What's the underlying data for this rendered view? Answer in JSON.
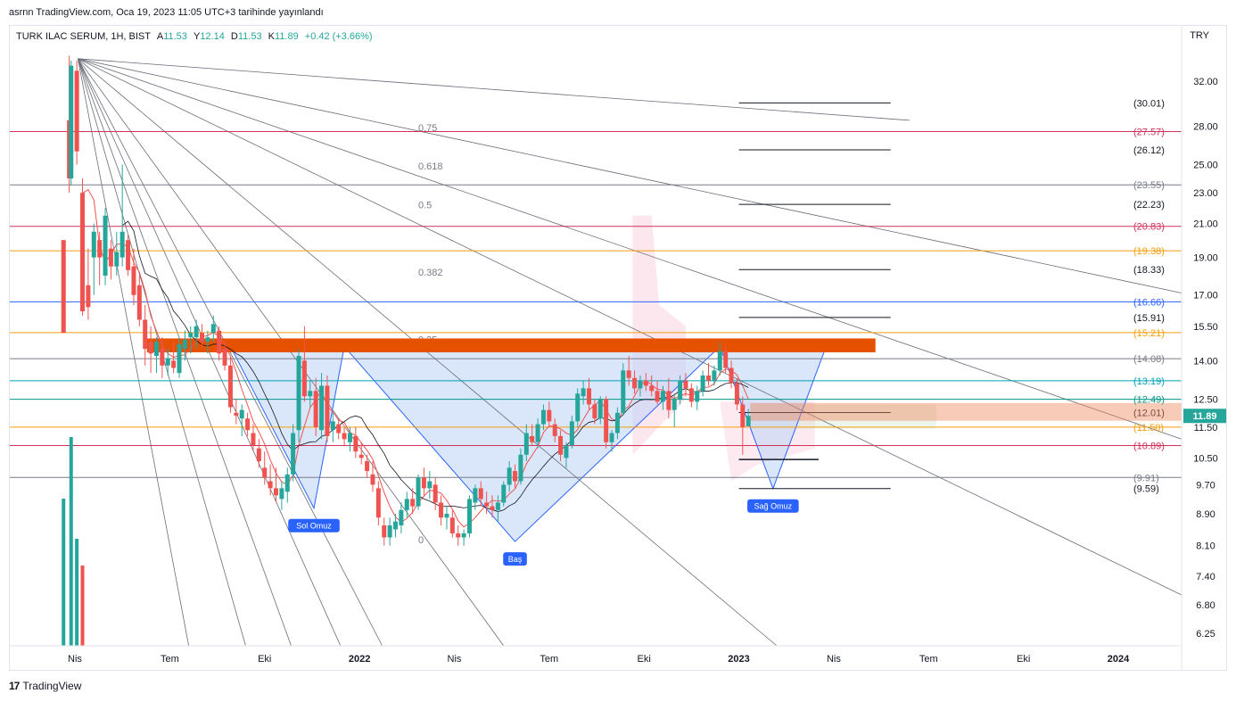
{
  "header": {
    "publish_line": "asrnn TradingView.com, Oca 19, 2023 11:05 UTC+3 tarihinde yayınlandı"
  },
  "legend": {
    "symbol": "TURK ILAC SERUM, 1H, BIST",
    "o_label": "A",
    "o_value": "11.53",
    "h_label": "Y",
    "h_value": "12.14",
    "l_label": "D",
    "l_value": "11.53",
    "c_label": "K",
    "c_value": "11.89",
    "change": "+0.42 (+3.66%)"
  },
  "currency": "TRY",
  "footer": {
    "brand": "TradingView",
    "logo_glyph": "17"
  },
  "colors": {
    "up": "#26a69a",
    "down": "#ef5350",
    "orange_band": "#e65100",
    "pattern_fill": "#bbd3f7",
    "pattern_stroke": "#2962ff",
    "label_bg": "#2962ff",
    "price_tag": "#26a69a"
  },
  "chart_data": {
    "type": "candlestick",
    "scale": "log",
    "ylim": [
      6.0,
      36.0
    ],
    "y_ticks": [
      6.25,
      6.8,
      7.4,
      8.1,
      8.9,
      9.7,
      10.5,
      11.5,
      12.5,
      14.0,
      15.5,
      17.0,
      19.0,
      21.0,
      23.0,
      25.0,
      28.0,
      32.0
    ],
    "y_tick_labels": [
      "6.25",
      "6.80",
      "7.40",
      "8.10",
      "8.90",
      "9.70",
      "10.50",
      "11.50",
      "12.50",
      "14.00",
      "15.50",
      "17.00",
      "19.00",
      "21.00",
      "23.00",
      "25.00",
      "28.00",
      "32.00"
    ],
    "x_ticks": [
      {
        "label": "Nis",
        "t": 2021.25
      },
      {
        "label": "Tem",
        "t": 2021.5
      },
      {
        "label": "Eki",
        "t": 2021.75
      },
      {
        "label": "2022",
        "t": 2022.0,
        "bold": true
      },
      {
        "label": "Nis",
        "t": 2022.25
      },
      {
        "label": "Tem",
        "t": 2022.5
      },
      {
        "label": "Eki",
        "t": 2022.75
      },
      {
        "label": "2023",
        "t": 2023.0,
        "bold": true
      },
      {
        "label": "Nis",
        "t": 2023.25
      },
      {
        "label": "Tem",
        "t": 2023.5
      },
      {
        "label": "Eki",
        "t": 2023.75
      },
      {
        "label": "2024",
        "t": 2024.0,
        "bold": true
      }
    ],
    "horizontal_levels": [
      {
        "value": 27.57,
        "label": "(27.57)",
        "color": "#d0325a",
        "full": true
      },
      {
        "value": 23.55,
        "label": "(23.55)",
        "color": "#787b86",
        "full": true
      },
      {
        "value": 20.83,
        "label": "(20.83)",
        "color": "#d0325a",
        "full": true
      },
      {
        "value": 19.38,
        "label": "(19.38)",
        "color": "#f59d0b",
        "full": true
      },
      {
        "value": 16.66,
        "label": "(16.66)",
        "color": "#2962ff",
        "full": true
      },
      {
        "value": 15.21,
        "label": "(15.21)",
        "color": "#f59d0b",
        "full": true
      },
      {
        "value": 14.08,
        "label": "(14.08)",
        "color": "#787b86",
        "full": true
      },
      {
        "value": 13.19,
        "label": "(13.19)",
        "color": "#00a3b4",
        "full": true
      },
      {
        "value": 12.49,
        "label": "(12.49)",
        "color": "#009688",
        "full": true
      },
      {
        "value": 11.5,
        "label": "(11.50)",
        "color": "#f59d0b",
        "full": true
      },
      {
        "value": 10.89,
        "label": "(10.89)",
        "color": "#d0325a",
        "full": true
      },
      {
        "value": 9.91,
        "label": "(9.91)",
        "color": "#787b86",
        "full": true
      },
      {
        "value": 30.01,
        "label": "(30.01)",
        "color": "#131722",
        "full": false
      },
      {
        "value": 26.12,
        "label": "(26.12)",
        "color": "#131722",
        "full": false
      },
      {
        "value": 22.23,
        "label": "(22.23)",
        "color": "#131722",
        "full": false
      },
      {
        "value": 18.33,
        "label": "(18.33)",
        "color": "#131722",
        "full": false
      },
      {
        "value": 15.91,
        "label": "(15.91)",
        "color": "#131722",
        "full": false
      },
      {
        "value": 12.01,
        "label": "(12.01)",
        "color": "#131722",
        "full": false
      },
      {
        "value": 9.59,
        "label": "(9.59)",
        "color": "#131722",
        "full": false
      }
    ],
    "fib_labels": [
      {
        "label": "0.75",
        "value": 27.9
      },
      {
        "label": "0.618",
        "value": 24.9
      },
      {
        "label": "0.5",
        "value": 22.2
      },
      {
        "label": "0.382",
        "value": 18.2
      },
      {
        "label": "0.25",
        "value": 14.9
      },
      {
        "label": "0",
        "value": 8.25
      }
    ],
    "pattern": {
      "labels": [
        "Sol Omuz",
        "Baş",
        "Sağ Omuz"
      ],
      "neckline": 14.6,
      "points": [
        {
          "t": 2021.66,
          "v": 14.6
        },
        {
          "t": 2021.88,
          "v": 9.05
        },
        {
          "t": 2021.96,
          "v": 14.6
        },
        {
          "t": 2022.41,
          "v": 8.2
        },
        {
          "t": 2022.95,
          "v": 14.6
        },
        {
          "t": 2023.09,
          "v": 9.59
        },
        {
          "t": 2023.23,
          "v": 14.6
        }
      ]
    },
    "last_price": {
      "value": 11.89,
      "label": "11.89"
    },
    "candles": [
      {
        "t": 2021.22,
        "o": 20.0,
        "h": 20.0,
        "l": 15.2,
        "c": 15.2
      },
      {
        "t": 2021.235,
        "o": 28.5,
        "h": 34.5,
        "l": 23.0,
        "c": 24.0
      },
      {
        "t": 2021.24,
        "o": 24.0,
        "h": 34.0,
        "l": 23.5,
        "c": 33.5
      },
      {
        "t": 2021.255,
        "o": 33.0,
        "h": 34.0,
        "l": 25.0,
        "c": 26.0
      },
      {
        "t": 2021.27,
        "o": 23.0,
        "h": 24.0,
        "l": 16.0,
        "c": 16.2
      },
      {
        "t": 2021.285,
        "o": 17.5,
        "h": 19.5,
        "l": 15.8,
        "c": 16.4
      },
      {
        "t": 2021.3,
        "o": 19.0,
        "h": 21.0,
        "l": 17.0,
        "c": 20.5
      },
      {
        "t": 2021.315,
        "o": 20.0,
        "h": 20.5,
        "l": 17.5,
        "c": 19.0
      },
      {
        "t": 2021.33,
        "o": 18.0,
        "h": 22.0,
        "l": 17.5,
        "c": 21.5
      },
      {
        "t": 2021.345,
        "o": 19.5,
        "h": 20.0,
        "l": 17.8,
        "c": 18.5
      },
      {
        "t": 2021.36,
        "o": 18.5,
        "h": 20.5,
        "l": 18.0,
        "c": 19.3
      },
      {
        "t": 2021.375,
        "o": 19.0,
        "h": 25.0,
        "l": 18.5,
        "c": 20.5
      },
      {
        "t": 2021.39,
        "o": 20.0,
        "h": 20.3,
        "l": 18.0,
        "c": 18.3
      },
      {
        "t": 2021.405,
        "o": 18.5,
        "h": 19.5,
        "l": 16.5,
        "c": 17.0
      },
      {
        "t": 2021.42,
        "o": 17.5,
        "h": 18.0,
        "l": 15.5,
        "c": 15.8
      },
      {
        "t": 2021.435,
        "o": 15.8,
        "h": 16.5,
        "l": 13.8,
        "c": 14.5
      },
      {
        "t": 2021.45,
        "o": 14.8,
        "h": 15.5,
        "l": 13.5,
        "c": 14.3
      },
      {
        "t": 2021.465,
        "o": 14.2,
        "h": 15.0,
        "l": 13.5,
        "c": 14.8
      },
      {
        "t": 2021.48,
        "o": 14.5,
        "h": 15.0,
        "l": 13.3,
        "c": 13.8
      },
      {
        "t": 2021.495,
        "o": 13.8,
        "h": 14.5,
        "l": 13.4,
        "c": 14.1
      },
      {
        "t": 2021.51,
        "o": 14.0,
        "h": 14.8,
        "l": 13.5,
        "c": 13.7
      },
      {
        "t": 2021.525,
        "o": 13.5,
        "h": 15.0,
        "l": 13.3,
        "c": 14.7
      },
      {
        "t": 2021.54,
        "o": 14.5,
        "h": 15.3,
        "l": 14.0,
        "c": 14.9
      },
      {
        "t": 2021.555,
        "o": 15.0,
        "h": 15.5,
        "l": 14.3,
        "c": 15.2
      },
      {
        "t": 2021.57,
        "o": 15.0,
        "h": 15.8,
        "l": 14.5,
        "c": 15.5
      },
      {
        "t": 2021.585,
        "o": 15.2,
        "h": 15.6,
        "l": 14.6,
        "c": 14.8
      },
      {
        "t": 2021.6,
        "o": 14.8,
        "h": 15.3,
        "l": 14.3,
        "c": 15.0
      },
      {
        "t": 2021.615,
        "o": 15.2,
        "h": 16.0,
        "l": 14.8,
        "c": 15.6
      },
      {
        "t": 2021.63,
        "o": 15.3,
        "h": 15.5,
        "l": 14.0,
        "c": 14.3
      },
      {
        "t": 2021.645,
        "o": 14.5,
        "h": 14.8,
        "l": 13.6,
        "c": 13.8
      },
      {
        "t": 2021.66,
        "o": 13.8,
        "h": 14.2,
        "l": 12.0,
        "c": 12.2
      },
      {
        "t": 2021.675,
        "o": 12.0,
        "h": 12.5,
        "l": 11.6,
        "c": 11.9
      },
      {
        "t": 2021.69,
        "o": 11.8,
        "h": 12.3,
        "l": 11.2,
        "c": 12.1
      },
      {
        "t": 2021.705,
        "o": 11.8,
        "h": 12.0,
        "l": 11.2,
        "c": 11.4
      },
      {
        "t": 2021.72,
        "o": 11.3,
        "h": 11.6,
        "l": 10.7,
        "c": 10.9
      },
      {
        "t": 2021.735,
        "o": 10.8,
        "h": 11.1,
        "l": 10.2,
        "c": 10.4
      },
      {
        "t": 2021.75,
        "o": 10.2,
        "h": 10.7,
        "l": 9.7,
        "c": 9.9
      },
      {
        "t": 2021.765,
        "o": 9.8,
        "h": 10.3,
        "l": 9.4,
        "c": 9.6
      },
      {
        "t": 2021.78,
        "o": 9.6,
        "h": 10.2,
        "l": 9.2,
        "c": 9.4
      },
      {
        "t": 2021.795,
        "o": 9.3,
        "h": 9.8,
        "l": 9.0,
        "c": 9.6
      },
      {
        "t": 2021.81,
        "o": 9.5,
        "h": 10.2,
        "l": 9.2,
        "c": 10.0
      },
      {
        "t": 2021.825,
        "o": 10.0,
        "h": 11.6,
        "l": 9.8,
        "c": 11.3
      },
      {
        "t": 2021.84,
        "o": 11.4,
        "h": 14.5,
        "l": 11.0,
        "c": 14.2
      },
      {
        "t": 2021.855,
        "o": 14.0,
        "h": 15.5,
        "l": 12.4,
        "c": 12.6
      },
      {
        "t": 2021.87,
        "o": 12.6,
        "h": 13.2,
        "l": 12.2,
        "c": 12.8
      },
      {
        "t": 2021.885,
        "o": 12.8,
        "h": 13.3,
        "l": 11.2,
        "c": 11.5
      },
      {
        "t": 2021.9,
        "o": 11.4,
        "h": 13.5,
        "l": 11.1,
        "c": 13.0
      },
      {
        "t": 2021.915,
        "o": 13.0,
        "h": 13.4,
        "l": 11.0,
        "c": 11.2
      },
      {
        "t": 2021.93,
        "o": 11.4,
        "h": 12.0,
        "l": 11.0,
        "c": 11.7
      },
      {
        "t": 2021.945,
        "o": 11.6,
        "h": 11.8,
        "l": 11.1,
        "c": 11.3
      },
      {
        "t": 2021.96,
        "o": 11.3,
        "h": 11.5,
        "l": 10.9,
        "c": 11.1
      },
      {
        "t": 2021.975,
        "o": 11.0,
        "h": 11.5,
        "l": 10.7,
        "c": 11.3
      },
      {
        "t": 2021.99,
        "o": 11.2,
        "h": 11.5,
        "l": 10.5,
        "c": 10.7
      },
      {
        "t": 2022.005,
        "o": 10.6,
        "h": 11.0,
        "l": 10.3,
        "c": 10.5
      },
      {
        "t": 2022.02,
        "o": 10.4,
        "h": 10.6,
        "l": 9.9,
        "c": 10.1
      },
      {
        "t": 2022.035,
        "o": 10.0,
        "h": 10.4,
        "l": 9.5,
        "c": 9.7
      },
      {
        "t": 2022.05,
        "o": 9.6,
        "h": 9.8,
        "l": 8.6,
        "c": 8.8
      },
      {
        "t": 2022.065,
        "o": 8.6,
        "h": 8.8,
        "l": 8.1,
        "c": 8.3
      },
      {
        "t": 2022.08,
        "o": 8.3,
        "h": 8.8,
        "l": 8.1,
        "c": 8.6
      },
      {
        "t": 2022.095,
        "o": 8.5,
        "h": 8.9,
        "l": 8.3,
        "c": 8.7
      },
      {
        "t": 2022.11,
        "o": 8.6,
        "h": 9.2,
        "l": 8.4,
        "c": 9.0
      },
      {
        "t": 2022.125,
        "o": 9.0,
        "h": 9.5,
        "l": 8.8,
        "c": 9.3
      },
      {
        "t": 2022.14,
        "o": 9.3,
        "h": 9.6,
        "l": 8.9,
        "c": 9.1
      },
      {
        "t": 2022.155,
        "o": 9.1,
        "h": 10.0,
        "l": 9.0,
        "c": 9.9
      },
      {
        "t": 2022.17,
        "o": 9.9,
        "h": 10.2,
        "l": 9.4,
        "c": 9.6
      },
      {
        "t": 2022.185,
        "o": 9.6,
        "h": 10.1,
        "l": 9.3,
        "c": 9.8
      },
      {
        "t": 2022.2,
        "o": 9.7,
        "h": 9.9,
        "l": 9.0,
        "c": 9.2
      },
      {
        "t": 2022.215,
        "o": 9.2,
        "h": 9.4,
        "l": 8.6,
        "c": 8.8
      },
      {
        "t": 2022.23,
        "o": 8.8,
        "h": 9.1,
        "l": 8.5,
        "c": 8.9
      },
      {
        "t": 2022.245,
        "o": 8.8,
        "h": 9.0,
        "l": 8.3,
        "c": 8.4
      },
      {
        "t": 2022.26,
        "o": 8.4,
        "h": 8.6,
        "l": 8.1,
        "c": 8.3
      },
      {
        "t": 2022.275,
        "o": 8.3,
        "h": 8.5,
        "l": 8.1,
        "c": 8.4
      },
      {
        "t": 2022.29,
        "o": 8.4,
        "h": 9.4,
        "l": 8.3,
        "c": 9.3
      },
      {
        "t": 2022.305,
        "o": 9.2,
        "h": 9.7,
        "l": 9.0,
        "c": 9.6
      },
      {
        "t": 2022.32,
        "o": 9.6,
        "h": 9.8,
        "l": 9.1,
        "c": 9.3
      },
      {
        "t": 2022.335,
        "o": 9.2,
        "h": 9.5,
        "l": 8.9,
        "c": 9.1
      },
      {
        "t": 2022.35,
        "o": 9.1,
        "h": 9.4,
        "l": 8.8,
        "c": 9.0
      },
      {
        "t": 2022.365,
        "o": 9.0,
        "h": 9.4,
        "l": 8.7,
        "c": 9.2
      },
      {
        "t": 2022.38,
        "o": 9.2,
        "h": 9.8,
        "l": 9.1,
        "c": 9.7
      },
      {
        "t": 2022.395,
        "o": 9.7,
        "h": 10.4,
        "l": 9.5,
        "c": 10.2
      },
      {
        "t": 2022.41,
        "o": 10.1,
        "h": 10.3,
        "l": 9.6,
        "c": 9.8
      },
      {
        "t": 2022.425,
        "o": 9.8,
        "h": 10.8,
        "l": 9.7,
        "c": 10.6
      },
      {
        "t": 2022.44,
        "o": 10.6,
        "h": 11.6,
        "l": 10.4,
        "c": 11.3
      },
      {
        "t": 2022.455,
        "o": 11.2,
        "h": 11.6,
        "l": 10.9,
        "c": 11.0
      },
      {
        "t": 2022.47,
        "o": 11.0,
        "h": 11.8,
        "l": 10.8,
        "c": 11.6
      },
      {
        "t": 2022.485,
        "o": 11.6,
        "h": 12.3,
        "l": 11.4,
        "c": 12.1
      },
      {
        "t": 2022.5,
        "o": 12.1,
        "h": 12.4,
        "l": 11.5,
        "c": 11.7
      },
      {
        "t": 2022.515,
        "o": 11.6,
        "h": 11.8,
        "l": 11.0,
        "c": 11.2
      },
      {
        "t": 2022.53,
        "o": 11.2,
        "h": 11.4,
        "l": 10.4,
        "c": 10.6
      },
      {
        "t": 2022.545,
        "o": 10.5,
        "h": 11.0,
        "l": 10.2,
        "c": 10.9
      },
      {
        "t": 2022.56,
        "o": 10.9,
        "h": 11.9,
        "l": 10.8,
        "c": 11.7
      },
      {
        "t": 2022.575,
        "o": 11.7,
        "h": 12.9,
        "l": 11.5,
        "c": 12.7
      },
      {
        "t": 2022.59,
        "o": 12.6,
        "h": 13.2,
        "l": 12.3,
        "c": 12.9
      },
      {
        "t": 2022.605,
        "o": 12.9,
        "h": 13.3,
        "l": 12.1,
        "c": 12.3
      },
      {
        "t": 2022.62,
        "o": 12.3,
        "h": 12.5,
        "l": 11.6,
        "c": 11.8
      },
      {
        "t": 2022.635,
        "o": 11.8,
        "h": 12.6,
        "l": 11.6,
        "c": 12.5
      },
      {
        "t": 2022.65,
        "o": 12.5,
        "h": 12.6,
        "l": 10.8,
        "c": 11.0
      },
      {
        "t": 2022.665,
        "o": 11.0,
        "h": 11.4,
        "l": 10.7,
        "c": 11.3
      },
      {
        "t": 2022.68,
        "o": 11.3,
        "h": 12.2,
        "l": 11.1,
        "c": 12.0
      },
      {
        "t": 2022.695,
        "o": 12.0,
        "h": 13.9,
        "l": 11.9,
        "c": 13.6
      },
      {
        "t": 2022.71,
        "o": 13.6,
        "h": 14.2,
        "l": 13.0,
        "c": 13.3
      },
      {
        "t": 2022.725,
        "o": 13.3,
        "h": 13.6,
        "l": 12.7,
        "c": 12.9
      },
      {
        "t": 2022.74,
        "o": 12.9,
        "h": 13.4,
        "l": 12.6,
        "c": 13.2
      },
      {
        "t": 2022.755,
        "o": 13.2,
        "h": 13.5,
        "l": 12.8,
        "c": 13.0
      },
      {
        "t": 2022.77,
        "o": 13.0,
        "h": 13.4,
        "l": 12.6,
        "c": 12.8
      },
      {
        "t": 2022.785,
        "o": 12.8,
        "h": 13.2,
        "l": 12.3,
        "c": 12.4
      },
      {
        "t": 2022.8,
        "o": 12.4,
        "h": 13.0,
        "l": 12.1,
        "c": 12.8
      },
      {
        "t": 2022.815,
        "o": 12.8,
        "h": 13.3,
        "l": 11.8,
        "c": 12.1
      },
      {
        "t": 2022.83,
        "o": 12.1,
        "h": 12.7,
        "l": 11.5,
        "c": 12.5
      },
      {
        "t": 2022.845,
        "o": 12.5,
        "h": 13.4,
        "l": 12.3,
        "c": 13.2
      },
      {
        "t": 2022.86,
        "o": 13.2,
        "h": 13.5,
        "l": 12.6,
        "c": 12.9
      },
      {
        "t": 2022.875,
        "o": 12.9,
        "h": 13.1,
        "l": 12.2,
        "c": 12.4
      },
      {
        "t": 2022.89,
        "o": 12.4,
        "h": 13.0,
        "l": 12.1,
        "c": 12.8
      },
      {
        "t": 2022.905,
        "o": 12.8,
        "h": 13.6,
        "l": 12.6,
        "c": 13.4
      },
      {
        "t": 2022.92,
        "o": 13.4,
        "h": 13.9,
        "l": 13.0,
        "c": 13.2
      },
      {
        "t": 2022.935,
        "o": 13.2,
        "h": 13.8,
        "l": 13.0,
        "c": 13.6
      },
      {
        "t": 2022.95,
        "o": 13.6,
        "h": 14.8,
        "l": 13.4,
        "c": 14.4
      },
      {
        "t": 2022.965,
        "o": 14.4,
        "h": 14.6,
        "l": 13.5,
        "c": 13.7
      },
      {
        "t": 2022.98,
        "o": 13.7,
        "h": 14.0,
        "l": 12.9,
        "c": 13.1
      },
      {
        "t": 2022.995,
        "o": 13.1,
        "h": 13.3,
        "l": 12.1,
        "c": 12.3
      },
      {
        "t": 2023.01,
        "o": 12.3,
        "h": 12.6,
        "l": 10.6,
        "c": 11.5
      },
      {
        "t": 2023.025,
        "o": 11.53,
        "h": 12.14,
        "l": 11.53,
        "c": 11.89
      }
    ],
    "volume": [
      {
        "t": 2021.22,
        "v": 0.55,
        "up": true
      },
      {
        "t": 2021.24,
        "v": 0.78,
        "up": true
      },
      {
        "t": 2021.255,
        "v": 0.4,
        "up": true
      },
      {
        "t": 2021.27,
        "v": 0.3,
        "up": false
      }
    ]
  }
}
